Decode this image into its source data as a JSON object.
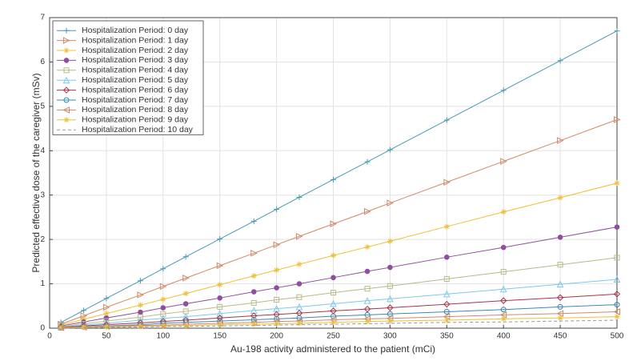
{
  "chart_data": {
    "type": "line",
    "x_label": "Au-198 activity administered to the patient (mCi)",
    "y_label": "Predicted effective dose of the caregiver (mSv)",
    "x": [
      10,
      30,
      50,
      80,
      100,
      120,
      150,
      180,
      200,
      220,
      250,
      280,
      300,
      350,
      400,
      450,
      500
    ],
    "xlim": [
      0,
      500
    ],
    "xticks": [
      0,
      50,
      100,
      150,
      200,
      250,
      300,
      350,
      400,
      450,
      500
    ],
    "ylim": [
      0,
      7
    ],
    "yticks": [
      0,
      1,
      2,
      3,
      4,
      5,
      6,
      7
    ],
    "grid": true,
    "legend": "top-left",
    "series": [
      {
        "name": "Hospitalization Period: 0 day",
        "color": "#4a98b4",
        "marker": "plus",
        "values": [
          0.13,
          0.4,
          0.67,
          1.07,
          1.34,
          1.61,
          2.01,
          2.41,
          2.68,
          2.95,
          3.35,
          3.75,
          4.02,
          4.69,
          5.36,
          6.03,
          6.7
        ]
      },
      {
        "name": "Hospitalization Period: 1 day",
        "color": "#d08a68",
        "marker": "triangle-right",
        "values": [
          0.09,
          0.28,
          0.47,
          0.75,
          0.94,
          1.13,
          1.41,
          1.69,
          1.88,
          2.07,
          2.35,
          2.63,
          2.82,
          3.29,
          3.76,
          4.23,
          4.7
        ]
      },
      {
        "name": "Hospitalization Period: 2 day",
        "color": "#ecc03a",
        "marker": "star",
        "values": [
          0.07,
          0.2,
          0.33,
          0.52,
          0.65,
          0.78,
          0.98,
          1.18,
          1.31,
          1.44,
          1.64,
          1.83,
          1.96,
          2.29,
          2.62,
          2.94,
          3.27
        ]
      },
      {
        "name": "Hospitalization Period: 3 day",
        "color": "#8e4f9c",
        "marker": "circle-filled",
        "values": [
          0.05,
          0.14,
          0.23,
          0.36,
          0.46,
          0.55,
          0.68,
          0.82,
          0.91,
          1.0,
          1.14,
          1.28,
          1.37,
          1.6,
          1.82,
          2.05,
          2.28
        ]
      },
      {
        "name": "Hospitalization Period: 4 day",
        "color": "#b9b98a",
        "marker": "square",
        "values": [
          0.03,
          0.1,
          0.16,
          0.25,
          0.32,
          0.38,
          0.48,
          0.57,
          0.64,
          0.7,
          0.8,
          0.89,
          0.95,
          1.11,
          1.27,
          1.43,
          1.59
        ]
      },
      {
        "name": "Hospitalization Period: 5 day",
        "color": "#7cc8ec",
        "marker": "triangle-up",
        "values": [
          0.02,
          0.07,
          0.11,
          0.18,
          0.22,
          0.26,
          0.33,
          0.4,
          0.44,
          0.48,
          0.55,
          0.62,
          0.66,
          0.77,
          0.88,
          0.99,
          1.1
        ]
      },
      {
        "name": "Hospitalization Period: 6 day",
        "color": "#a8354a",
        "marker": "diamond",
        "values": [
          0.02,
          0.05,
          0.08,
          0.12,
          0.15,
          0.18,
          0.23,
          0.28,
          0.31,
          0.34,
          0.39,
          0.43,
          0.46,
          0.54,
          0.62,
          0.69,
          0.77
        ]
      },
      {
        "name": "Hospitalization Period: 7 day",
        "color": "#3c88b4",
        "marker": "circle",
        "values": [
          0.01,
          0.03,
          0.05,
          0.08,
          0.11,
          0.13,
          0.16,
          0.19,
          0.21,
          0.23,
          0.27,
          0.3,
          0.32,
          0.37,
          0.42,
          0.48,
          0.53
        ]
      },
      {
        "name": "Hospitalization Period: 8 day",
        "color": "#d08a68",
        "marker": "triangle-left",
        "values": [
          0.01,
          0.02,
          0.04,
          0.06,
          0.07,
          0.09,
          0.11,
          0.13,
          0.15,
          0.16,
          0.19,
          0.21,
          0.22,
          0.26,
          0.3,
          0.33,
          0.37
        ]
      },
      {
        "name": "Hospitalization Period: 9 day",
        "color": "#ecc03a",
        "marker": "star",
        "values": [
          0.01,
          0.02,
          0.03,
          0.04,
          0.05,
          0.06,
          0.08,
          0.09,
          0.1,
          0.11,
          0.13,
          0.15,
          0.16,
          0.18,
          0.21,
          0.23,
          0.26
        ]
      },
      {
        "name": "Hospitalization Period: 10 day",
        "color": "#999999",
        "marker": "none",
        "dash": true,
        "values": [
          0.0,
          0.01,
          0.02,
          0.03,
          0.04,
          0.04,
          0.05,
          0.06,
          0.07,
          0.08,
          0.09,
          0.1,
          0.11,
          0.13,
          0.14,
          0.16,
          0.18
        ]
      }
    ]
  }
}
